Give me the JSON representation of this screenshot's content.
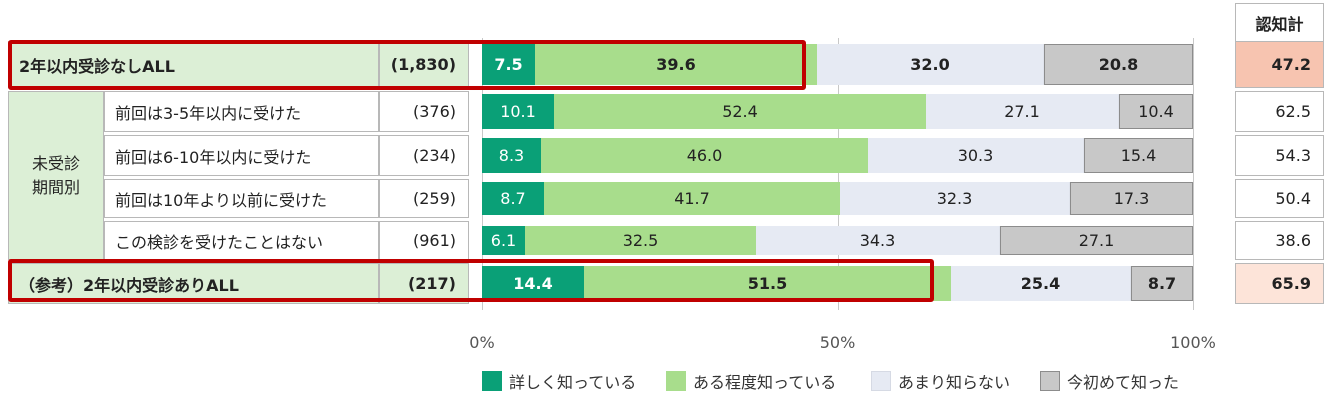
{
  "chart_data": {
    "type": "bar",
    "stacked": true,
    "orientation": "horizontal",
    "xlim": [
      0,
      100
    ],
    "x_tick_labels": [
      "0%",
      "50%",
      "100%"
    ],
    "group_label": "未受診\n期間別",
    "score_header": "認知計",
    "series": [
      {
        "name": "詳しく知っている",
        "color": "#0aa077"
      },
      {
        "name": "ある程度知っている",
        "color": "#a8dd8c"
      },
      {
        "name": "あまり知らない",
        "color": "#e6eaf3"
      },
      {
        "name": "今初めて知った",
        "color": "#c8c8c8"
      }
    ],
    "rows": [
      {
        "label": "2年以内受診なしALL",
        "n": "(1,830)",
        "values": [
          7.5,
          39.6,
          32.0,
          20.8
        ],
        "labels": [
          "7.5",
          "39.6",
          "32.0",
          "20.8"
        ],
        "total": "47.2",
        "total_bg": "#f7c4b0",
        "bold": true,
        "highlight": true,
        "grouped": false
      },
      {
        "label": "前回は3-5年以内に受けた",
        "n": "(376)",
        "values": [
          10.1,
          52.4,
          27.1,
          10.4
        ],
        "labels": [
          "10.1",
          "52.4",
          "27.1",
          "10.4"
        ],
        "total": "62.5",
        "total_bg": "#ffffff",
        "bold": false,
        "highlight": false,
        "grouped": true
      },
      {
        "label": "前回は6-10年以内に受けた",
        "n": "(234)",
        "values": [
          8.3,
          46.0,
          30.3,
          15.4
        ],
        "labels": [
          "8.3",
          "46.0",
          "30.3",
          "15.4"
        ],
        "total": "54.3",
        "total_bg": "#ffffff",
        "bold": false,
        "highlight": false,
        "grouped": true
      },
      {
        "label": "前回は10年より以前に受けた",
        "n": "(259)",
        "values": [
          8.7,
          41.7,
          32.3,
          17.3
        ],
        "labels": [
          "8.7",
          "41.7",
          "32.3",
          "17.3"
        ],
        "total": "50.4",
        "total_bg": "#ffffff",
        "bold": false,
        "highlight": false,
        "grouped": true
      },
      {
        "label": "この検診を受けたことはない",
        "n": "(961)",
        "values": [
          6.1,
          32.5,
          34.3,
          27.1
        ],
        "labels": [
          "6.1",
          "32.5",
          "34.3",
          "27.1"
        ],
        "total": "38.6",
        "total_bg": "#ffffff",
        "bold": false,
        "highlight": false,
        "grouped": true
      },
      {
        "label": "（参考）2年以内受診ありALL",
        "n": "(217)",
        "values": [
          14.4,
          51.5,
          25.4,
          8.7
        ],
        "labels": [
          "14.4",
          "51.5",
          "25.4",
          "8.7"
        ],
        "total": "65.9",
        "total_bg": "#fde4d9",
        "bold": true,
        "highlight": true,
        "grouped": false
      }
    ]
  }
}
